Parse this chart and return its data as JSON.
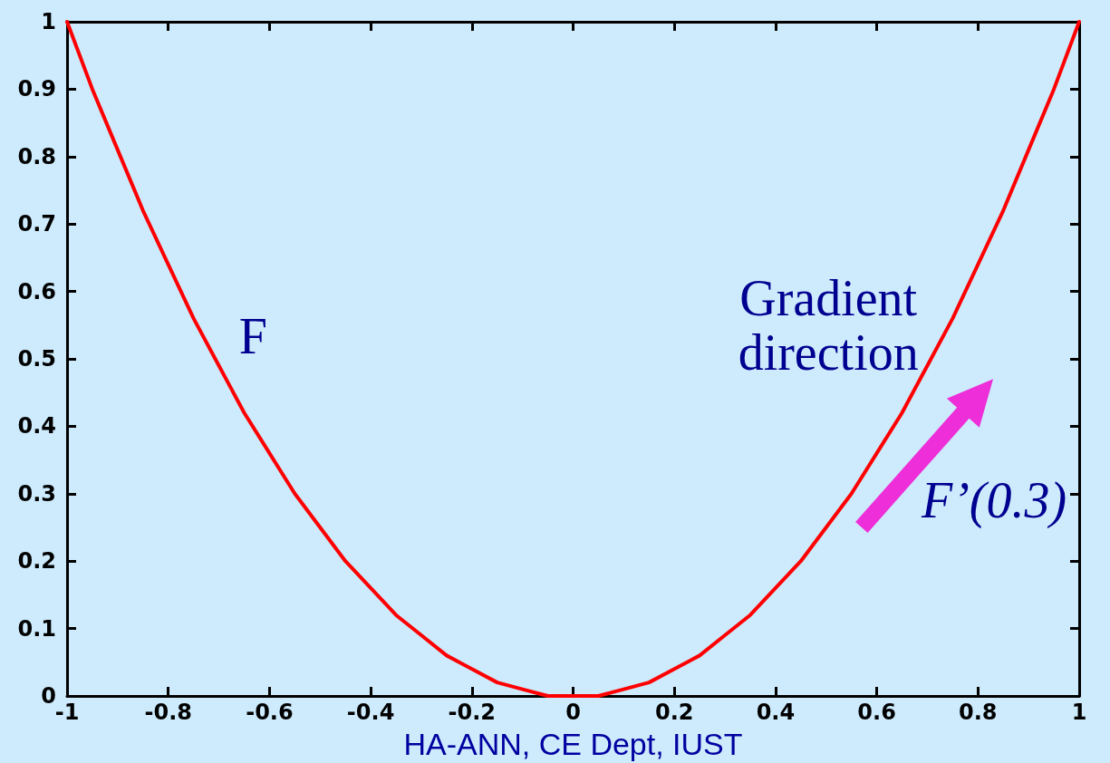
{
  "chart_data": {
    "type": "line",
    "annotations": [
      "Gradient direction",
      "F’(0.3)",
      "HA-ANN, CE Dept, IUST"
    ],
    "series": [
      {
        "name": "F",
        "color": "#ff0000",
        "x": [
          -1,
          -0.95,
          -0.9,
          -0.85,
          -0.8,
          -0.75,
          -0.7,
          -0.65,
          -0.6,
          -0.55,
          -0.5,
          -0.45,
          -0.4,
          -0.35,
          -0.3,
          -0.25,
          -0.2,
          -0.15,
          -0.1,
          -0.05,
          0,
          0.05,
          0.1,
          0.15,
          0.2,
          0.25,
          0.3,
          0.35,
          0.4,
          0.45,
          0.5,
          0.55,
          0.6,
          0.65,
          0.7,
          0.75,
          0.8,
          0.85,
          0.9,
          0.95,
          1
        ],
        "values": [
          1,
          0.9,
          0.81,
          0.72,
          0.64,
          0.56,
          0.49,
          0.42,
          0.36,
          0.3,
          0.25,
          0.2,
          0.16,
          0.12,
          0.09,
          0.06,
          0.04,
          0.02,
          0.01,
          0,
          0,
          0,
          0.01,
          0.02,
          0.04,
          0.06,
          0.09,
          0.12,
          0.16,
          0.2,
          0.25,
          0.3,
          0.36,
          0.42,
          0.49,
          0.56,
          0.64,
          0.72,
          0.81,
          0.9,
          1
        ]
      }
    ],
    "xlim": [
      -1,
      1
    ],
    "xticks": [
      -1,
      -0.8,
      -0.6,
      -0.4,
      -0.2,
      0,
      0.2,
      0.4,
      0.6,
      0.8,
      1
    ],
    "ylim": [
      0,
      1
    ],
    "yticks": [
      0,
      0.1,
      0.2,
      0.3,
      0.4,
      0.5,
      0.6,
      0.7,
      0.8,
      0.9,
      1
    ],
    "grid": false,
    "legend": false,
    "marker": "none",
    "line_style": "solid"
  }
}
